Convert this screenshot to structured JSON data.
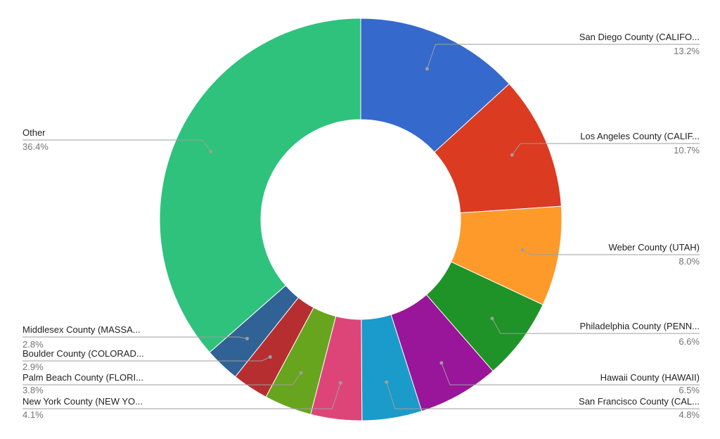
{
  "chart_data": {
    "type": "pie",
    "donut": true,
    "title": "",
    "slices": [
      {
        "label": "San Diego County (CALIFO...",
        "value_label": "13.2%",
        "value": 13.2,
        "color": "#3669cc"
      },
      {
        "label": "Los Angeles County (CALIF...",
        "value_label": "10.7%",
        "value": 10.7,
        "color": "#db3b21"
      },
      {
        "label": "Weber County (UTAH)",
        "value_label": "8.0%",
        "value": 8.0,
        "color": "#fe9a2a"
      },
      {
        "label": "Philadelphia County (PENN...",
        "value_label": "6.6%",
        "value": 6.6,
        "color": "#1f9327"
      },
      {
        "label": "Hawaii County (HAWAII)",
        "value_label": "6.5%",
        "value": 6.5,
        "color": "#991599"
      },
      {
        "label": "San Francisco County (CAL...",
        "value_label": "4.8%",
        "value": 4.8,
        "color": "#1a9bc9"
      },
      {
        "label": "New York County (NEW YO...",
        "value_label": "4.1%",
        "value": 4.1,
        "color": "#dd4578"
      },
      {
        "label": "Palm Beach County (FLORI...",
        "value_label": "3.8%",
        "value": 3.8,
        "color": "#67a51e"
      },
      {
        "label": "Boulder County (COLORAD...",
        "value_label": "2.9%",
        "value": 2.9,
        "color": "#b72e30"
      },
      {
        "label": "Middlesex County (MASSA...",
        "value_label": "2.8%",
        "value": 2.8,
        "color": "#316295"
      },
      {
        "label": "Other",
        "value_label": "36.4%",
        "value": 36.4,
        "color": "#2ec27c"
      }
    ]
  }
}
